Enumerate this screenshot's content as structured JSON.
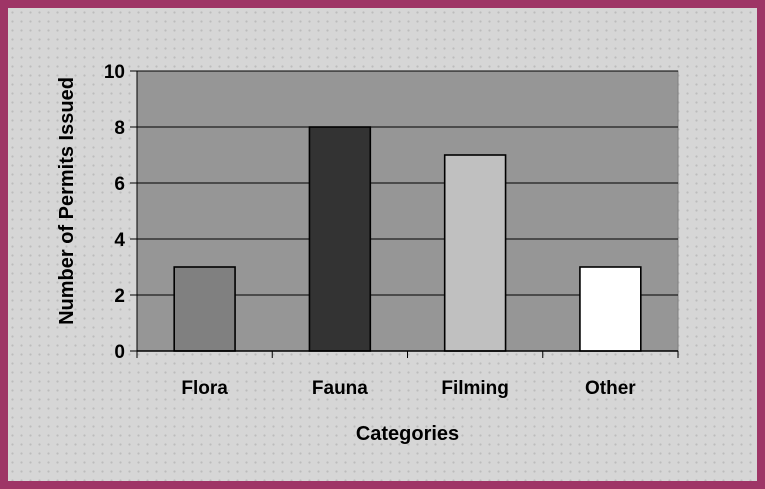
{
  "chart_data": {
    "type": "bar",
    "title": "",
    "categories": [
      "Flora",
      "Fauna",
      "Filming",
      "Other"
    ],
    "values": [
      3,
      8,
      7,
      3
    ],
    "bar_colors": [
      "#808080",
      "#333333",
      "#c0c0c0",
      "#ffffff"
    ],
    "xlabel": "Categories",
    "ylabel": "Number of Permits Issued",
    "ylim": [
      0,
      10
    ],
    "yticks": [
      "0",
      "2",
      "4",
      "6",
      "8",
      "10"
    ],
    "grid": true,
    "legend": "none",
    "plot_background": "#969696",
    "frame_color": "#9e3566"
  }
}
